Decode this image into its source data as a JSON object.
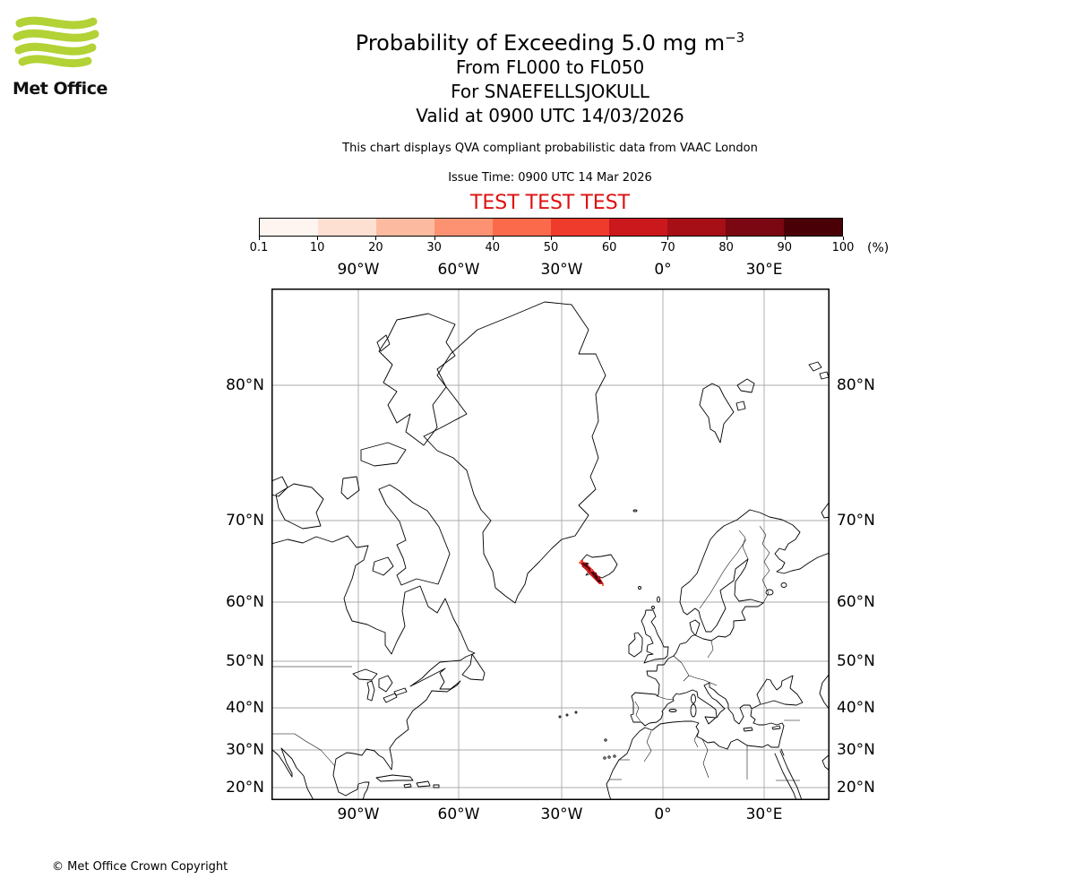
{
  "logo": {
    "brand": "Met Office"
  },
  "header": {
    "title_main": "Probability of Exceeding 5.0 mg m",
    "title_exponent": "−3",
    "subtitle1": "From FL000 to FL050",
    "subtitle2": "For SNAEFELLSJOKULL",
    "subtitle3": "Valid at 0900 UTC 14/03/2026",
    "note": "This chart displays QVA compliant probabilistic data from VAAC London",
    "issue_time": "Issue Time: 0900 UTC 14 Mar 2026",
    "test_banner": "TEST TEST TEST"
  },
  "colorbar": {
    "unit": "(%)",
    "tick_labels": [
      "0.1",
      "10",
      "20",
      "30",
      "40",
      "50",
      "60",
      "70",
      "80",
      "90",
      "100"
    ],
    "segment_colors": [
      "#fff5f0",
      "#fee0d2",
      "#fcbba1",
      "#fc9272",
      "#fb6a4a",
      "#ef3b2c",
      "#cb181d",
      "#a50f15",
      "#7a0711",
      "#4a0007"
    ]
  },
  "map": {
    "top_axis_labels": [
      "90°W",
      "60°W",
      "30°W",
      "0°",
      "30°E"
    ],
    "bottom_axis_labels": [
      "90°W",
      "60°W",
      "30°W",
      "0°",
      "30°E"
    ],
    "left_axis_labels": [
      "80°N",
      "70°N",
      "60°N",
      "50°N",
      "40°N",
      "30°N",
      "20°N"
    ],
    "right_axis_labels": [
      "80°N",
      "70°N",
      "60°N",
      "50°N",
      "40°N",
      "30°N",
      "20°N"
    ]
  },
  "footer": {
    "copyright": "© Met Office Crown Copyright"
  },
  "chart_data": {
    "type": "heatmap",
    "title": "Probability of Exceeding 5.0 mg m−3",
    "flight_levels": "FL000 to FL050",
    "volcano": "SNAEFELLSJOKULL",
    "valid_time": "0900 UTC 14/03/2026",
    "issue_time": "0900 UTC 14 Mar 2026",
    "source_note": "QVA compliant probabilistic data from VAAC London",
    "test_status": "TEST TEST TEST",
    "colorbar_percent_levels": [
      0.1,
      10,
      20,
      30,
      40,
      50,
      60,
      70,
      80,
      90,
      100
    ],
    "projection": "Mercator",
    "lon_ticks_deg": [
      -90,
      -60,
      -30,
      0,
      30
    ],
    "lat_ticks_deg": [
      80,
      70,
      60,
      50,
      40,
      30,
      20
    ],
    "plume": {
      "description": "Small high-probability ash plume at the west coast of Iceland trailing south-east over the ocean",
      "approx_center_lonlat": [
        -22.5,
        63.8
      ],
      "max_probability_percent": 100
    },
    "legend_position": "top",
    "grid": true
  }
}
